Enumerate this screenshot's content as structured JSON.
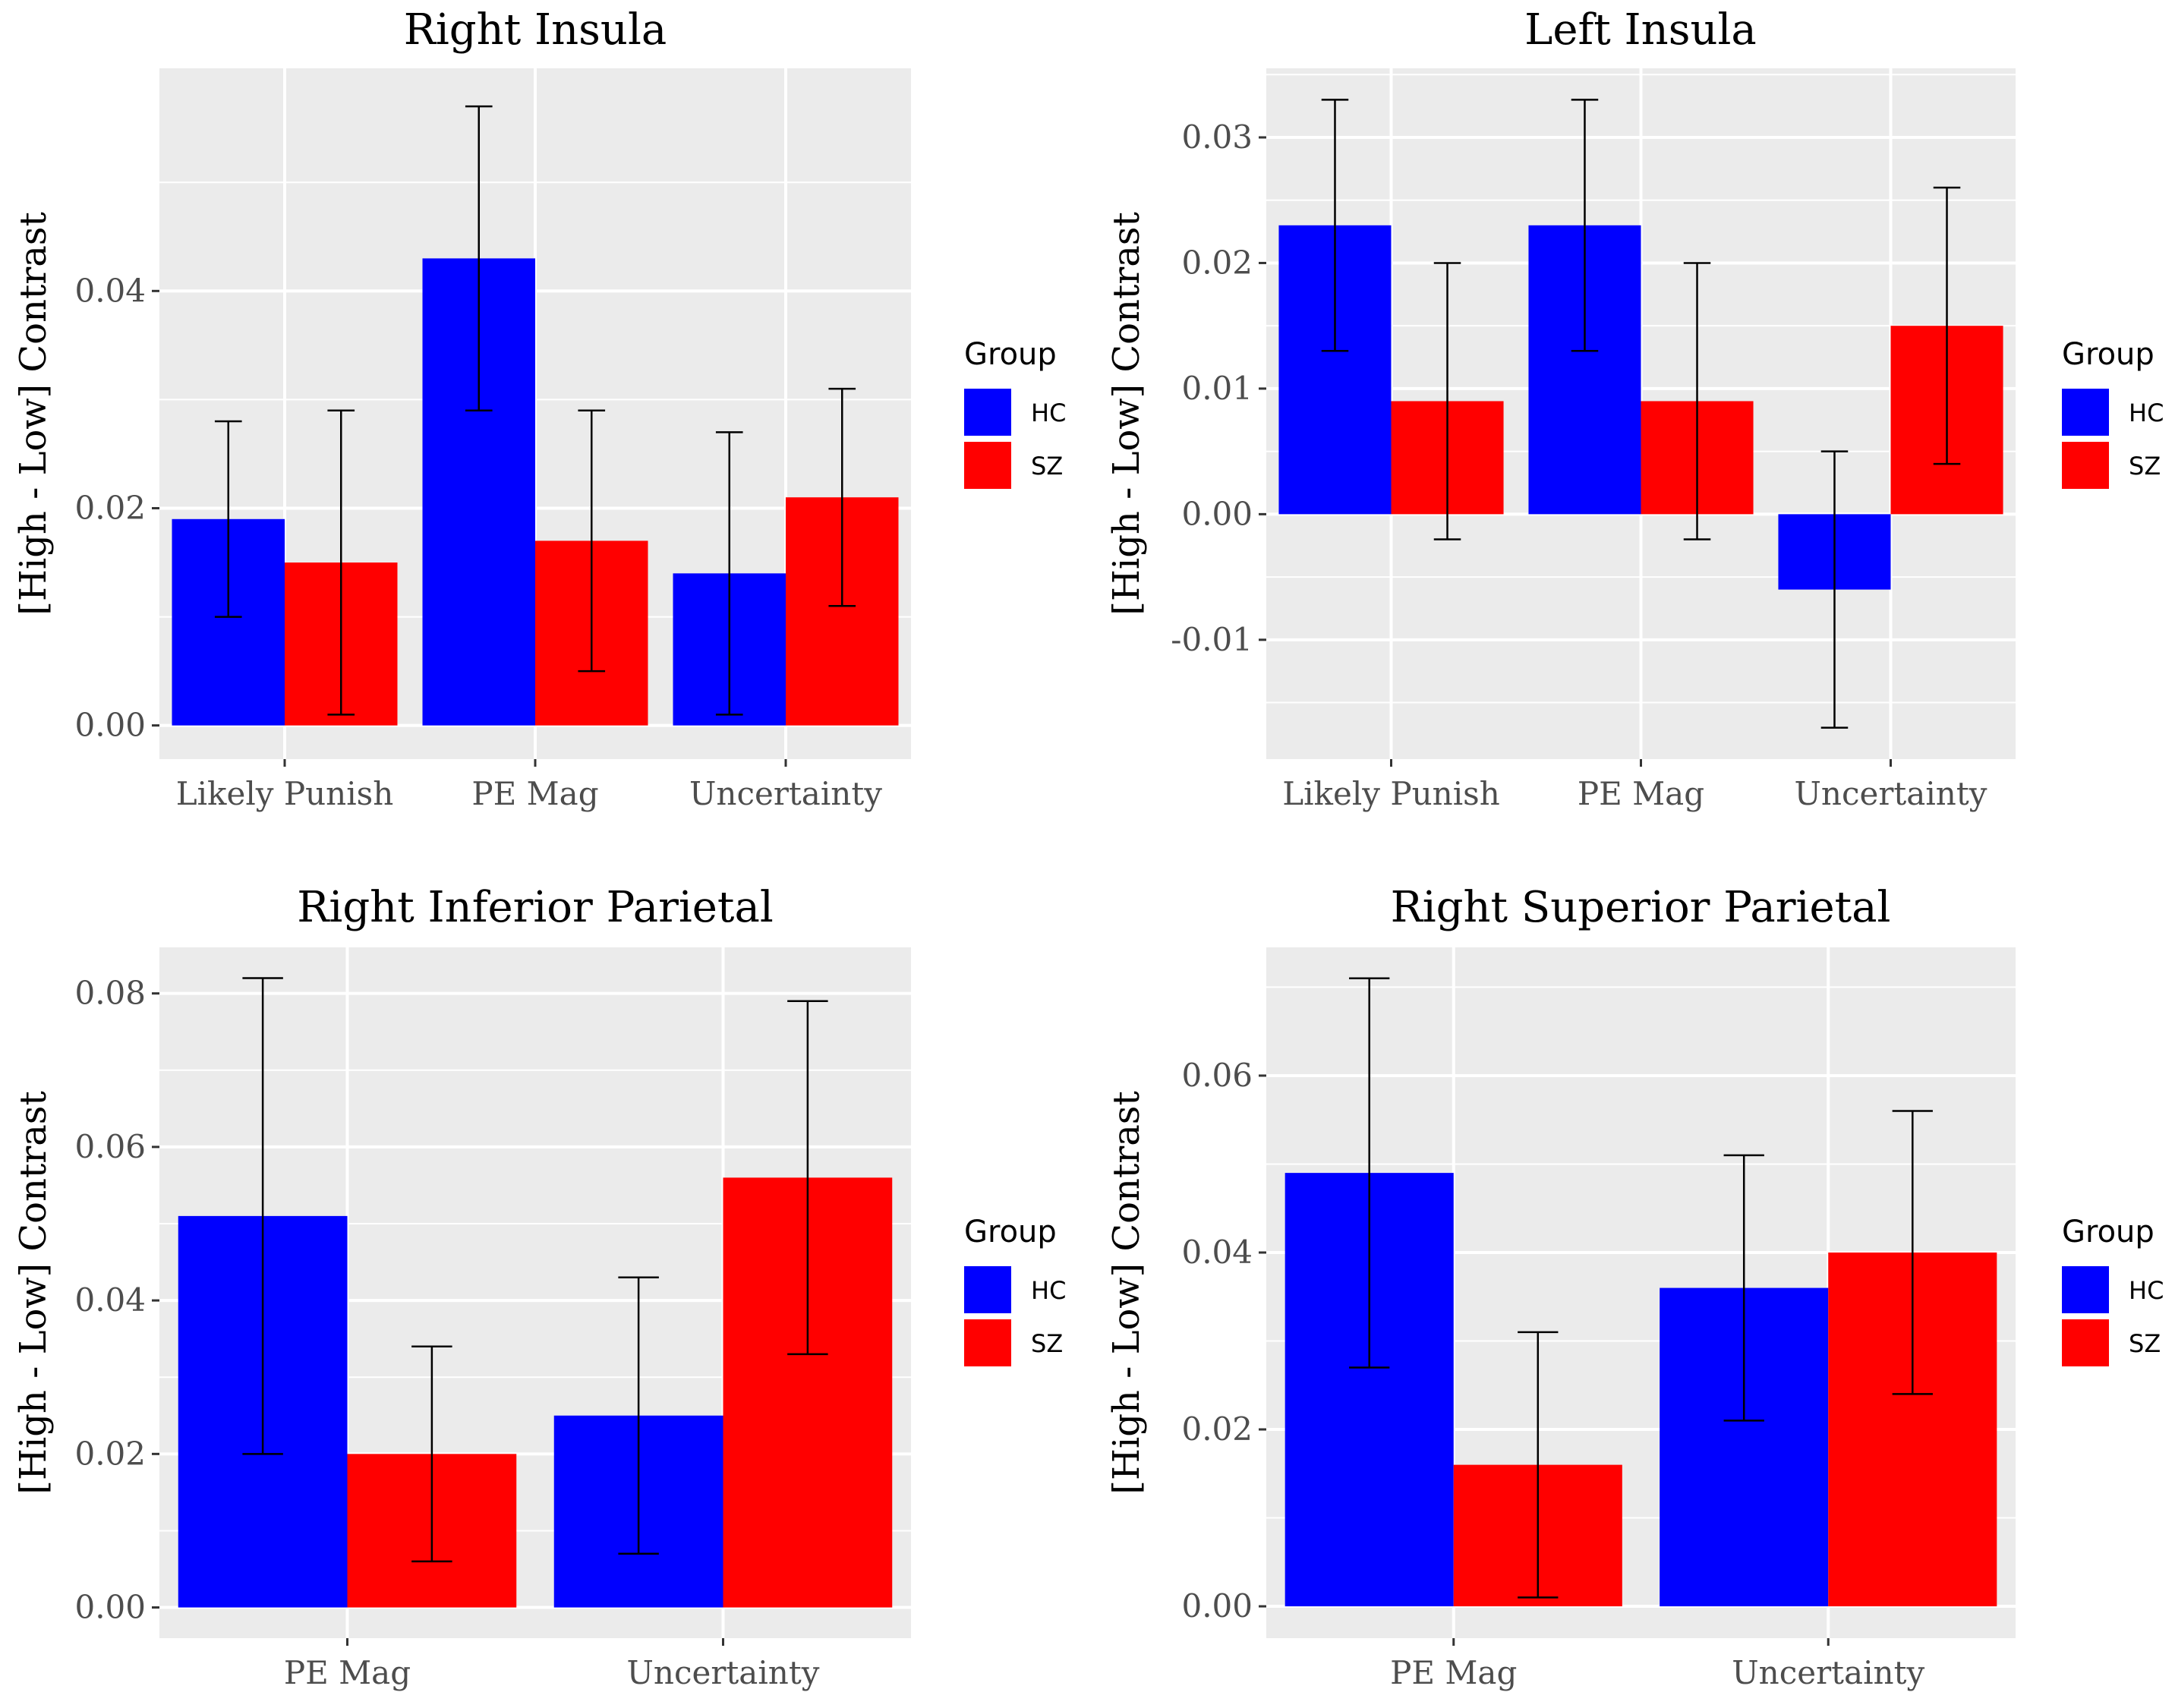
{
  "chart_data": [
    {
      "type": "bar",
      "title": "Right Insula",
      "ylabel": "[High - Low] Contrast",
      "xlabel": "",
      "categories": [
        "Likely Punish",
        "PE Mag",
        "Uncertainty"
      ],
      "ylim": [
        -0.0031,
        0.0605
      ],
      "yticks": [
        0,
        0.02,
        0.04
      ],
      "ytick_labels": [
        "0.00",
        "0.02",
        "0.04"
      ],
      "series": [
        {
          "name": "HC",
          "values": [
            0.019,
            0.043,
            0.014
          ],
          "lower": [
            0.01,
            0.029,
            0.001
          ],
          "upper": [
            0.028,
            0.057,
            0.027
          ]
        },
        {
          "name": "SZ",
          "values": [
            0.015,
            0.017,
            0.021
          ],
          "lower": [
            0.001,
            0.005,
            0.011
          ],
          "upper": [
            0.029,
            0.029,
            0.031
          ]
        }
      ],
      "legend": {
        "title": "Group",
        "position": "right"
      }
    },
    {
      "type": "bar",
      "title": "Left Insula",
      "ylabel": "[High - Low] Contrast",
      "xlabel": "",
      "categories": [
        "Likely Punish",
        "PE Mag",
        "Uncertainty"
      ],
      "ylim": [
        -0.0195,
        0.0355
      ],
      "yticks": [
        -0.01,
        0,
        0.01,
        0.02,
        0.03
      ],
      "ytick_labels": [
        "-0.01",
        "0.00",
        "0.01",
        "0.02",
        "0.03"
      ],
      "series": [
        {
          "name": "HC",
          "values": [
            0.023,
            0.023,
            -0.006
          ],
          "lower": [
            0.013,
            0.013,
            -0.017
          ],
          "upper": [
            0.033,
            0.033,
            0.005
          ]
        },
        {
          "name": "SZ",
          "values": [
            0.009,
            0.009,
            0.015
          ],
          "lower": [
            -0.002,
            -0.002,
            0.004
          ],
          "upper": [
            0.02,
            0.02,
            0.026
          ]
        }
      ],
      "legend": {
        "title": "Group",
        "position": "right"
      }
    },
    {
      "type": "bar",
      "title": "Right Inferior Parietal",
      "ylabel": "[High - Low] Contrast",
      "xlabel": "",
      "categories": [
        "PE Mag",
        "Uncertainty"
      ],
      "ylim": [
        -0.004,
        0.086
      ],
      "yticks": [
        0,
        0.02,
        0.04,
        0.06,
        0.08
      ],
      "ytick_labels": [
        "0.00",
        "0.02",
        "0.04",
        "0.06",
        "0.08"
      ],
      "series": [
        {
          "name": "HC",
          "values": [
            0.051,
            0.025
          ],
          "lower": [
            0.02,
            0.007
          ],
          "upper": [
            0.082,
            0.043
          ]
        },
        {
          "name": "SZ",
          "values": [
            0.02,
            0.056
          ],
          "lower": [
            0.006,
            0.033
          ],
          "upper": [
            0.034,
            0.079
          ]
        }
      ],
      "legend": {
        "title": "Group",
        "position": "right"
      }
    },
    {
      "type": "bar",
      "title": "Right Superior Parietal",
      "ylabel": "[High - Low] Contrast",
      "xlabel": "",
      "categories": [
        "PE Mag",
        "Uncertainty"
      ],
      "ylim": [
        -0.0036,
        0.0745
      ],
      "yticks": [
        0,
        0.02,
        0.04,
        0.06
      ],
      "ytick_labels": [
        "0.00",
        "0.02",
        "0.04",
        "0.06"
      ],
      "series": [
        {
          "name": "HC",
          "values": [
            0.049,
            0.036
          ],
          "lower": [
            0.027,
            0.021
          ],
          "upper": [
            0.071,
            0.051
          ]
        },
        {
          "name": "SZ",
          "values": [
            0.016,
            0.04
          ],
          "lower": [
            0.001,
            0.024
          ],
          "upper": [
            0.031,
            0.056
          ]
        }
      ],
      "legend": {
        "title": "Group",
        "position": "right"
      }
    }
  ],
  "colors": {
    "HC": "#0000ff",
    "SZ": "#ff0000",
    "panel_background": "#ebebeb",
    "grid": "#ffffff"
  }
}
